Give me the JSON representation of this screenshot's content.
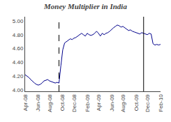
{
  "chart_data": {
    "type": "line",
    "title": "Money Multiplier in India",
    "categories": [
      "Apr-08",
      null,
      null,
      null,
      null,
      null,
      null,
      "Jun-08",
      null,
      null,
      null,
      null,
      null,
      "Aug-08",
      null,
      null,
      null,
      null,
      null,
      null,
      "Oct-08",
      null,
      null,
      null,
      null,
      null,
      "Dec-08",
      null,
      null,
      null,
      null,
      null,
      null,
      "Feb-09",
      null,
      null,
      null,
      null,
      null,
      "Apr-09",
      null,
      null,
      null,
      null,
      null,
      null,
      "Jun-09",
      null,
      null,
      null,
      null,
      null,
      "Aug-09",
      null,
      null,
      null,
      null,
      null,
      null,
      "Oct-09",
      null,
      null,
      null,
      null,
      null,
      "Dec-09",
      null,
      null,
      null,
      null,
      null,
      null,
      "Feb-10"
    ],
    "values": [
      4.22,
      4.2,
      4.18,
      4.15,
      4.12,
      4.1,
      4.08,
      4.07,
      4.08,
      4.1,
      4.13,
      4.14,
      4.15,
      4.13,
      4.12,
      4.11,
      4.1,
      4.11,
      4.1,
      4.35,
      4.58,
      4.68,
      4.7,
      4.72,
      4.74,
      4.73,
      4.75,
      4.76,
      4.78,
      4.8,
      4.82,
      4.8,
      4.78,
      4.82,
      4.8,
      4.79,
      4.8,
      4.82,
      4.85,
      4.82,
      4.78,
      4.82,
      4.8,
      4.82,
      4.83,
      4.85,
      4.88,
      4.9,
      4.92,
      4.94,
      4.93,
      4.91,
      4.92,
      4.9,
      4.88,
      4.86,
      4.87,
      4.85,
      4.84,
      4.83,
      4.82,
      4.81,
      4.83,
      4.82,
      4.81,
      4.8,
      4.82,
      4.81,
      4.67,
      4.65,
      4.66,
      4.65,
      4.66
    ],
    "color": "#00008B",
    "ylim": [
      3.98,
      5.06
    ],
    "yticks": [
      {
        "value": 4.0,
        "label": "4.00"
      },
      {
        "value": 4.2,
        "label": "4.20"
      },
      {
        "value": 4.4,
        "label": "4.40"
      },
      {
        "value": 4.6,
        "label": "4.60"
      },
      {
        "value": 4.8,
        "label": "4.80"
      },
      {
        "value": 5.0,
        "label": "5.00"
      }
    ],
    "vlines": [
      {
        "x": 18,
        "line_style": "dashed",
        "color": "#000000"
      },
      {
        "x": 63,
        "line_style": "solid",
        "color": "#000000"
      }
    ],
    "grid": false
  }
}
